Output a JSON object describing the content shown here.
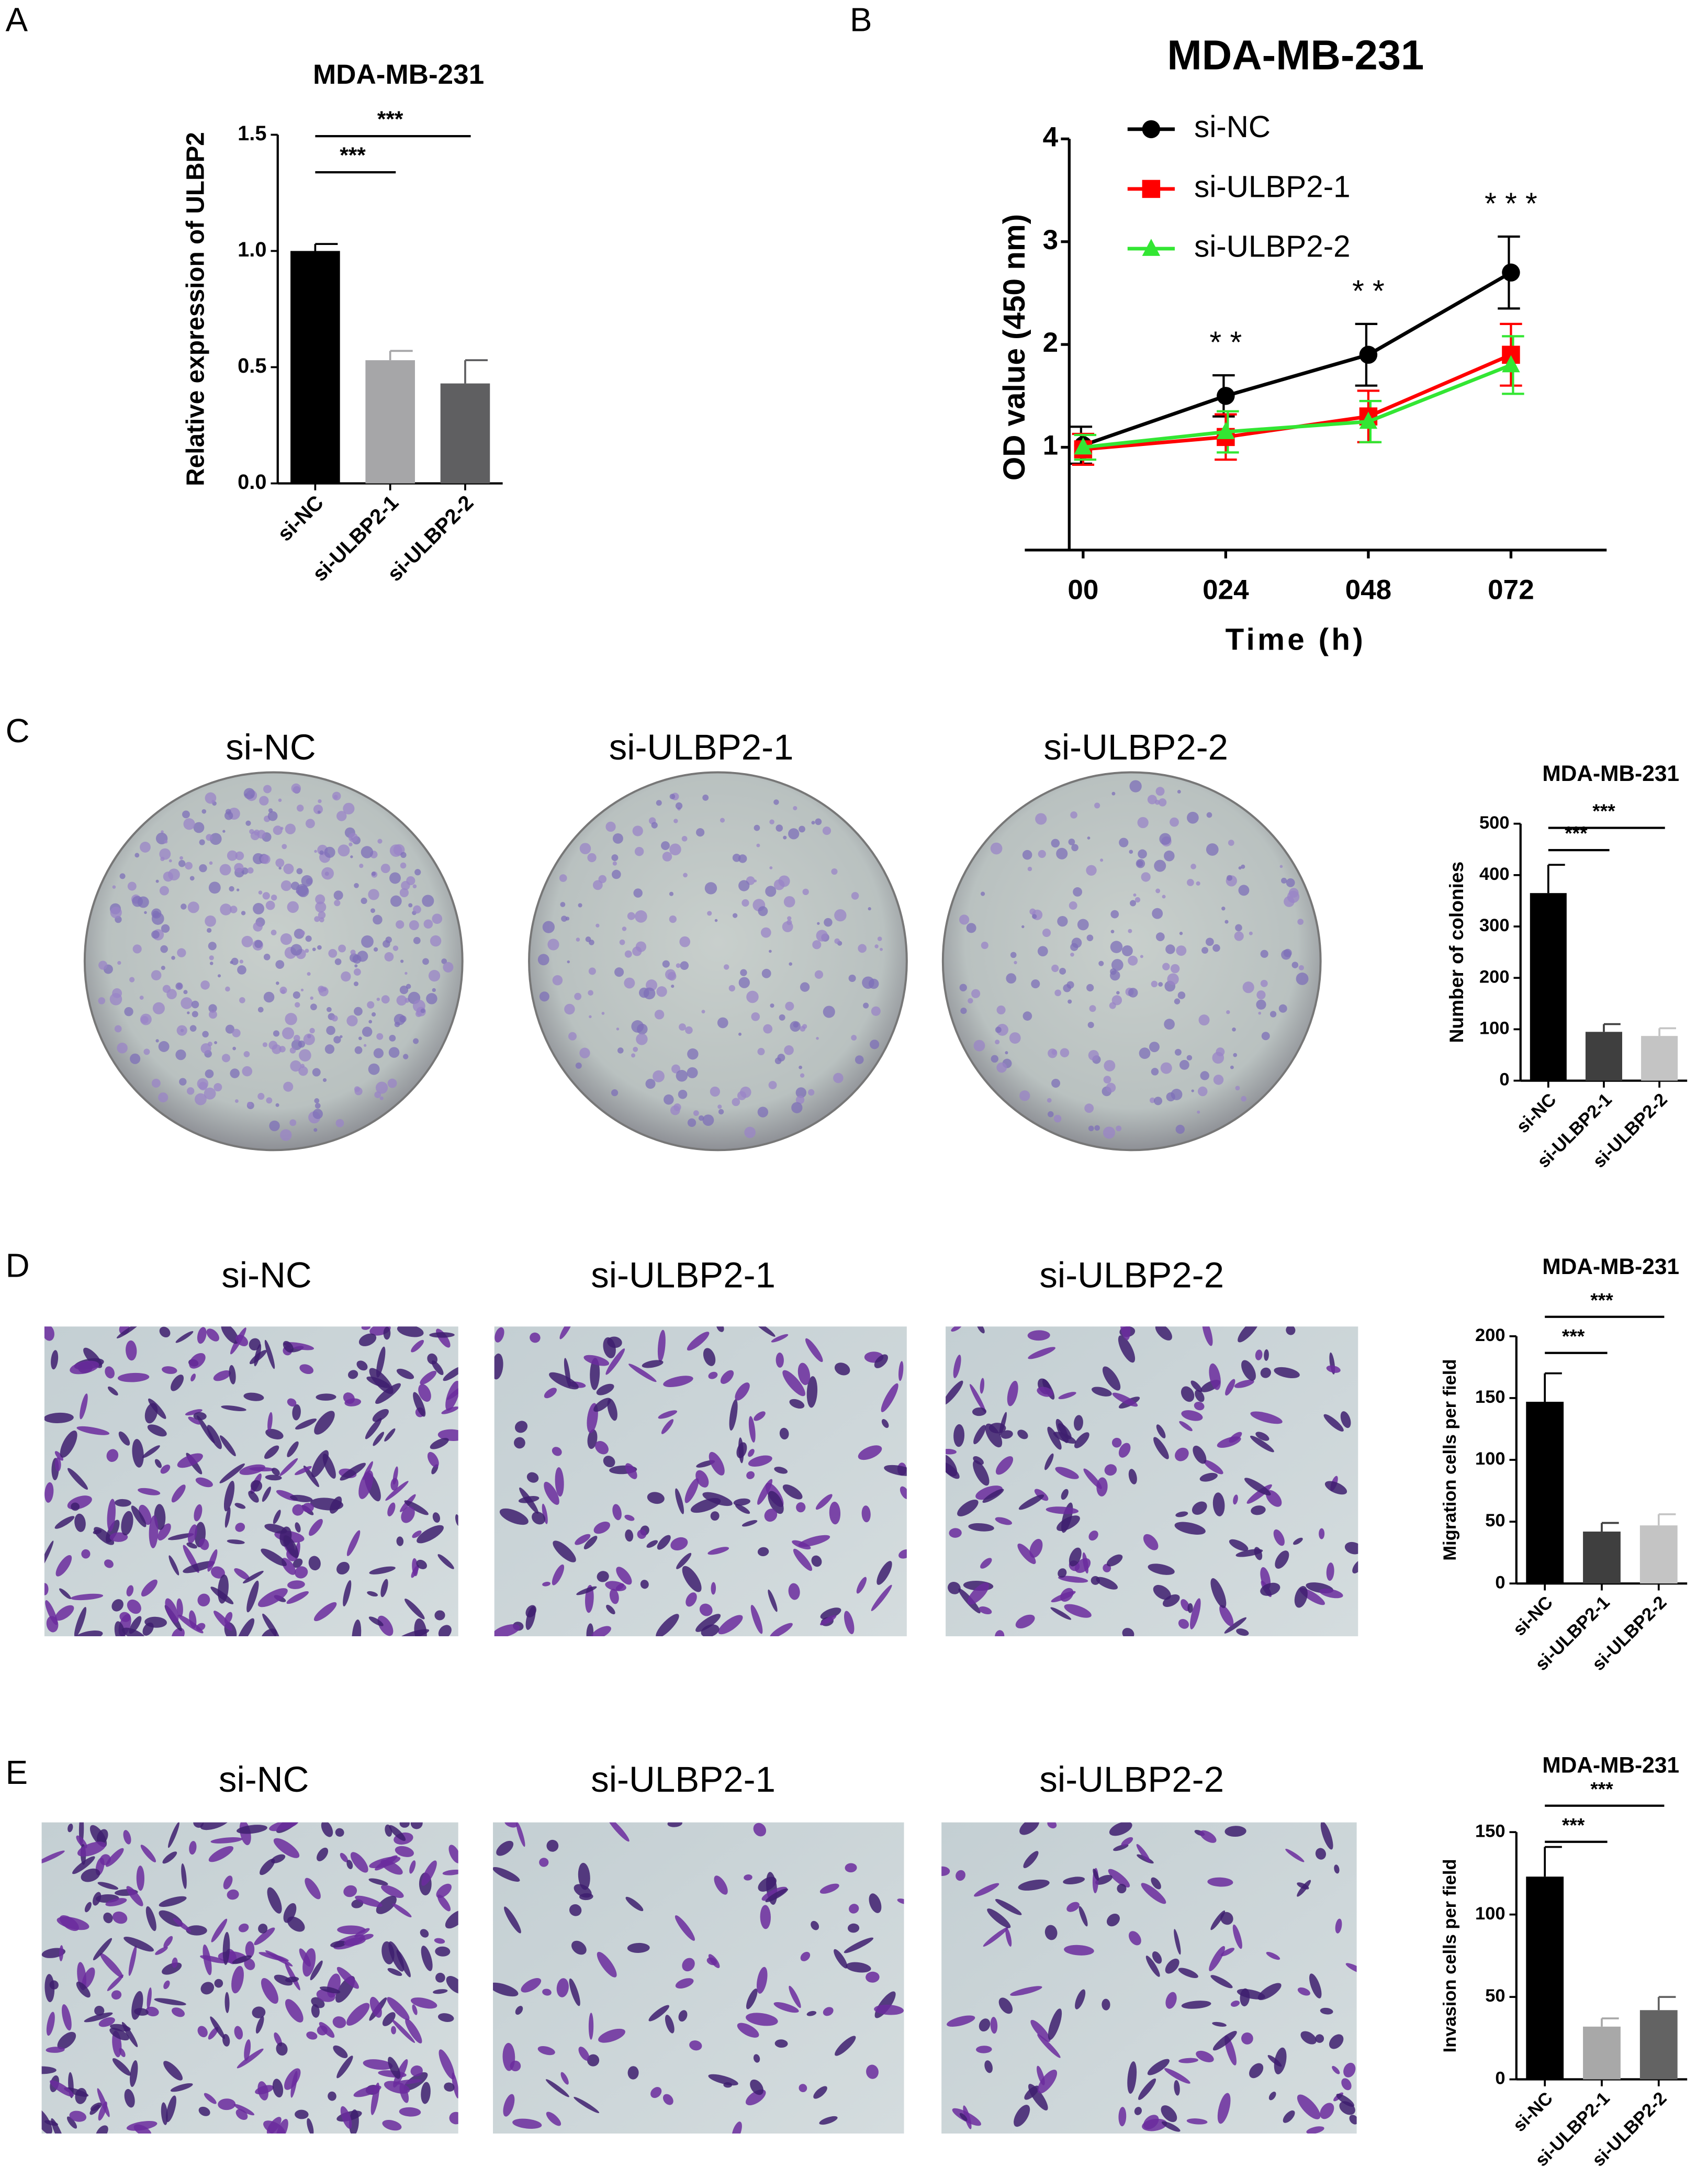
{
  "panel_labels": [
    "A",
    "B",
    "C",
    "D",
    "E"
  ],
  "image_rows": [
    {
      "labels": [
        "si-NC",
        "si-ULBP2-1",
        "si-ULBP2-2"
      ]
    },
    {
      "labels": [
        "si-NC",
        "si-ULBP2-1",
        "si-ULBP2-2"
      ]
    },
    {
      "labels": [
        "si-NC",
        "si-ULBP2-1",
        "si-ULBP2-2"
      ]
    }
  ],
  "chart_data": [
    {
      "type": "bar",
      "title": "MDA-MB-231",
      "y_label": "Relative expression of ULBP2",
      "categories": [
        "si-NC",
        "si-ULBP2-1",
        "si-ULBP2-2"
      ],
      "values": [
        1.0,
        0.53,
        0.43
      ],
      "errors": [
        0.03,
        0.04,
        0.1
      ],
      "colors": [
        "#000000",
        "#a6a6a8",
        "#5f5f61"
      ],
      "ylim": [
        0,
        1.5
      ],
      "yticks": [
        {
          "value": 0,
          "label": "0.0"
        },
        0.5,
        {
          "value": 1,
          "label": "1.0"
        },
        1.5
      ],
      "significance": [
        {
          "categories": [
            "si-NC",
            "si-ULBP2-1"
          ],
          "label": "***"
        },
        {
          "categories": [
            "si-NC",
            "si-ULBP2-2"
          ],
          "label": "***"
        }
      ]
    },
    {
      "type": "line",
      "title": "MDA-MB-231",
      "x_label": "Time (h)",
      "y_label": "OD value (450 nm)",
      "categories": [
        "00",
        "024",
        "048",
        "072"
      ],
      "series": [
        {
          "name": "si-NC",
          "color": "#000000",
          "marker": "circle",
          "values": [
            1.02,
            1.5,
            1.9,
            2.7
          ],
          "errors": [
            0.18,
            0.2,
            0.3,
            0.35
          ]
        },
        {
          "name": "si-ULBP2-1",
          "color": "#ff0000",
          "marker": "square",
          "values": [
            0.98,
            1.1,
            1.3,
            1.9
          ],
          "errors": [
            0.15,
            0.22,
            0.25,
            0.3
          ]
        },
        {
          "name": "si-ULBP2-2",
          "color": "#33e633",
          "marker": "triangle",
          "values": [
            1.0,
            1.15,
            1.25,
            1.8
          ],
          "errors": [
            0.12,
            0.2,
            0.2,
            0.28
          ]
        }
      ],
      "ylim": [
        0,
        4
      ],
      "yticks": [
        1,
        2,
        3,
        4
      ],
      "legend": "upper left",
      "annotations": [
        {
          "category": "024",
          "label": "* *"
        },
        {
          "category": "048",
          "label": "* *"
        },
        {
          "category": "072",
          "label": "* * *"
        }
      ]
    },
    {
      "type": "bar",
      "title": "MDA-MB-231",
      "y_label": "Number of colonies",
      "categories": [
        "si-NC",
        "si-ULBP2-1",
        "si-ULBP2-2"
      ],
      "values": [
        365,
        95,
        87
      ],
      "errors": [
        55,
        15,
        15
      ],
      "colors": [
        "#000000",
        "#3f3f3f",
        "#c4c4c4"
      ],
      "ylim": [
        0,
        500
      ],
      "yticks": [
        0,
        100,
        200,
        300,
        400,
        500
      ],
      "significance": [
        {
          "categories": [
            "si-NC",
            "si-ULBP2-1"
          ],
          "label": "***"
        },
        {
          "categories": [
            "si-NC",
            "si-ULBP2-2"
          ],
          "label": "***"
        }
      ]
    },
    {
      "type": "bar",
      "title": "MDA-MB-231",
      "y_label": "Migration cells per field",
      "categories": [
        "si-NC",
        "si-ULBP2-1",
        "si-ULBP2-2"
      ],
      "values": [
        147,
        42,
        47
      ],
      "errors": [
        23,
        7,
        9
      ],
      "colors": [
        "#000000",
        "#3f3f3f",
        "#c4c4c4"
      ],
      "ylim": [
        0,
        200
      ],
      "yticks": [
        0,
        50,
        100,
        150,
        200
      ],
      "significance": [
        {
          "categories": [
            "si-NC",
            "si-ULBP2-1"
          ],
          "label": "***"
        },
        {
          "categories": [
            "si-NC",
            "si-ULBP2-2"
          ],
          "label": "***"
        }
      ]
    },
    {
      "type": "bar",
      "title": "MDA-MB-231",
      "y_label": "Invasion cells per field",
      "categories": [
        "si-NC",
        "si-ULBP2-1",
        "si-ULBP2-2"
      ],
      "values": [
        123,
        32,
        42
      ],
      "errors": [
        18,
        5,
        8
      ],
      "colors": [
        "#000000",
        "#a8a8a8",
        "#636363"
      ],
      "ylim": [
        0,
        150
      ],
      "yticks": [
        0,
        50,
        100,
        150
      ],
      "significance": [
        {
          "categories": [
            "si-NC",
            "si-ULBP2-1"
          ],
          "label": "***"
        },
        {
          "categories": [
            "si-NC",
            "si-ULBP2-2"
          ],
          "label": "***"
        }
      ]
    }
  ]
}
